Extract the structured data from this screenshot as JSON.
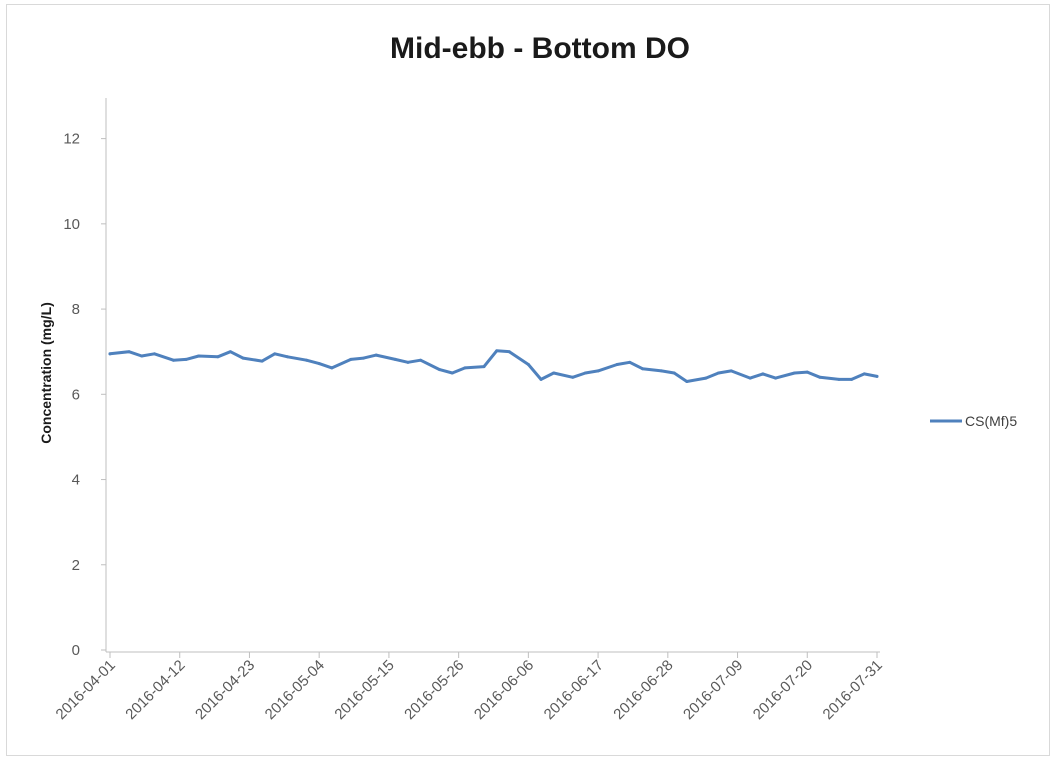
{
  "chart_data": {
    "type": "line",
    "title": "Mid-ebb - Bottom DO",
    "xlabel": "",
    "ylabel": "Concentration (mg/L)",
    "ylim": [
      0,
      13
    ],
    "y_ticks": [
      0,
      2,
      4,
      6,
      8,
      10,
      12
    ],
    "x_tick_labels": [
      "2016-04-01",
      "2016-04-12",
      "2016-04-23",
      "2016-05-04",
      "2016-05-15",
      "2016-05-26",
      "2016-06-06",
      "2016-06-17",
      "2016-06-28",
      "2016-07-09",
      "2016-07-20",
      "2016-07-31"
    ],
    "xlim": [
      "2016-04-01",
      "2016-07-31"
    ],
    "grid": false,
    "legend_position": "right",
    "series": [
      {
        "name": "CS(Mf)5",
        "color": "#4f81bd",
        "x": [
          "2016-04-01",
          "2016-04-04",
          "2016-04-06",
          "2016-04-08",
          "2016-04-11",
          "2016-04-13",
          "2016-04-15",
          "2016-04-18",
          "2016-04-20",
          "2016-04-22",
          "2016-04-25",
          "2016-04-27",
          "2016-04-29",
          "2016-05-02",
          "2016-05-04",
          "2016-05-06",
          "2016-05-09",
          "2016-05-11",
          "2016-05-13",
          "2016-05-16",
          "2016-05-18",
          "2016-05-20",
          "2016-05-23",
          "2016-05-25",
          "2016-05-27",
          "2016-05-30",
          "2016-06-01",
          "2016-06-03",
          "2016-06-06",
          "2016-06-08",
          "2016-06-10",
          "2016-06-13",
          "2016-06-15",
          "2016-06-17",
          "2016-06-20",
          "2016-06-22",
          "2016-06-24",
          "2016-06-27",
          "2016-06-29",
          "2016-07-01",
          "2016-07-04",
          "2016-07-06",
          "2016-07-08",
          "2016-07-11",
          "2016-07-13",
          "2016-07-15",
          "2016-07-18",
          "2016-07-20",
          "2016-07-22",
          "2016-07-25",
          "2016-07-27",
          "2016-07-29",
          "2016-07-31"
        ],
        "y": [
          6.95,
          7.0,
          6.9,
          6.95,
          6.8,
          6.82,
          6.9,
          6.88,
          7.0,
          6.85,
          6.78,
          6.95,
          6.88,
          6.8,
          6.72,
          6.62,
          6.82,
          6.85,
          6.92,
          6.82,
          6.75,
          6.8,
          6.58,
          6.5,
          6.62,
          6.65,
          7.02,
          7.0,
          6.7,
          6.35,
          6.5,
          6.4,
          6.5,
          6.55,
          6.7,
          6.75,
          6.6,
          6.55,
          6.5,
          6.3,
          6.38,
          6.5,
          6.55,
          6.38,
          6.48,
          6.38,
          6.5,
          6.52,
          6.4,
          6.35,
          6.35,
          6.48,
          6.42
        ]
      }
    ]
  }
}
